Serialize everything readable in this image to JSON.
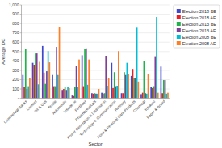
{
  "chart_data": {
    "type": "bar",
    "xlabel": "Sector",
    "ylabel": "Average DC",
    "categories": [
      "Commercial Banks",
      "Cement",
      "Oil & Gas",
      "Textile",
      "Automobile",
      "Insurance",
      "Fertilizer",
      "Pharmaceuticals",
      "Power Generation & Distribution",
      "Technology & Communication",
      "Refinery",
      "Food & Personal Care Products",
      "Chemical",
      "Tobacco",
      "Paper & Board"
    ],
    "series": [
      {
        "name": "Election 2018 BE",
        "color": "#3f48cc",
        "values": [
          250,
          380,
          560,
          250,
          90,
          30,
          460,
          55,
          60,
          380,
          55,
          240,
          45,
          125,
          340
        ]
      },
      {
        "name": "Election 2018 AE",
        "color": "#ed1c24",
        "values": [
          120,
          360,
          275,
          130,
          100,
          25,
          130,
          50,
          50,
          110,
          55,
          315,
          60,
          110,
          55
        ]
      },
      {
        "name": "Election 2013 BE",
        "color": "#22b14c",
        "values": [
          530,
          480,
          155,
          130,
          120,
          120,
          530,
          55,
          55,
          280,
          280,
          220,
          400,
          130,
          195
        ]
      },
      {
        "name": "Election 2013 AE",
        "color": "#7f3f97",
        "values": [
          100,
          480,
          290,
          550,
          90,
          350,
          535,
          50,
          455,
          130,
          250,
          215,
          55,
          450,
          195
        ]
      },
      {
        "name": "Election 2008 BE",
        "color": "#00bcd4",
        "values": [
          130,
          150,
          505,
          250,
          120,
          120,
          145,
          50,
          135,
          135,
          380,
          755,
          50,
          870,
          50
        ]
      },
      {
        "name": "Election 2008 AE",
        "color": "#ff7f27",
        "values": [
          215,
          390,
          385,
          760,
          110,
          415,
          415,
          100,
          220,
          505,
          265,
          180,
          260,
          60,
          60
        ]
      }
    ],
    "ylim": [
      0,
      1000
    ],
    "yticks": [
      {
        "value": 0,
        "label": "-"
      },
      100,
      200,
      300,
      400,
      500,
      600,
      700,
      800,
      900,
      {
        "value": 1000,
        "label": "1,000"
      }
    ],
    "grid": true,
    "legend": "right"
  }
}
